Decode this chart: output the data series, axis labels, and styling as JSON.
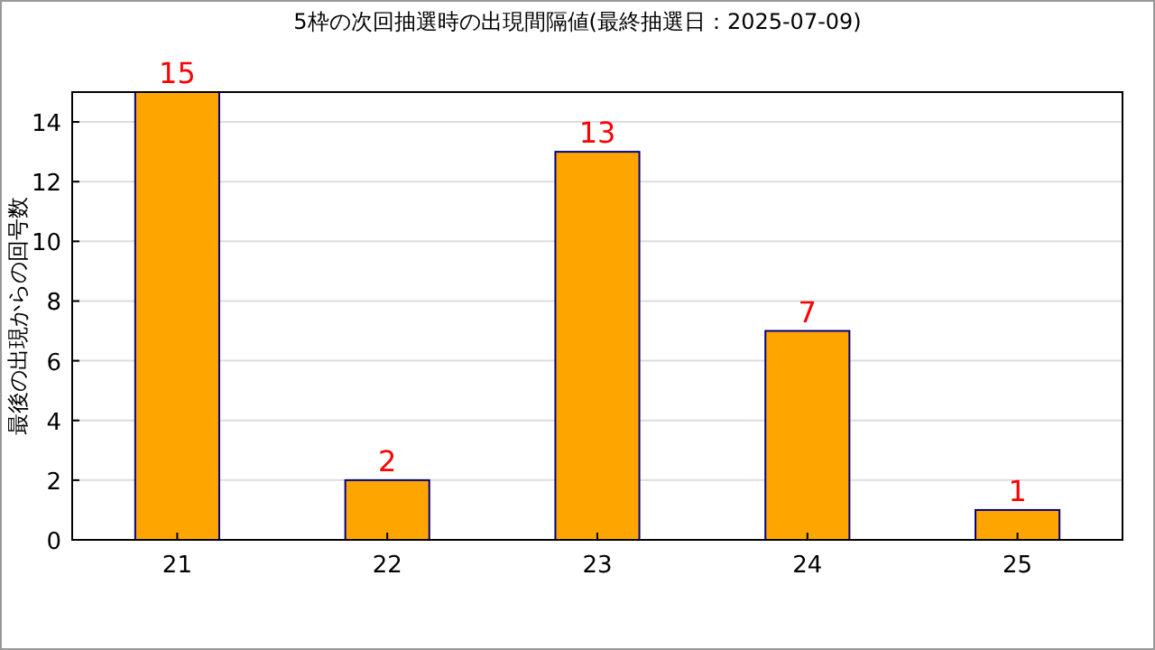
{
  "chart_data": {
    "type": "bar",
    "title": "5枠の次回抽選時の出現間隔値(最終抽選日：2025-07-09)",
    "ylabel": "最後の出現からの回号数",
    "categories": [
      "21",
      "22",
      "23",
      "24",
      "25"
    ],
    "values": [
      15,
      2,
      13,
      7,
      1
    ],
    "color": "#ffa500",
    "ylim": [
      0,
      15
    ],
    "yticks": [
      0,
      2,
      4,
      6,
      8,
      10,
      12,
      14
    ],
    "grid": "y",
    "data_labels": true
  }
}
